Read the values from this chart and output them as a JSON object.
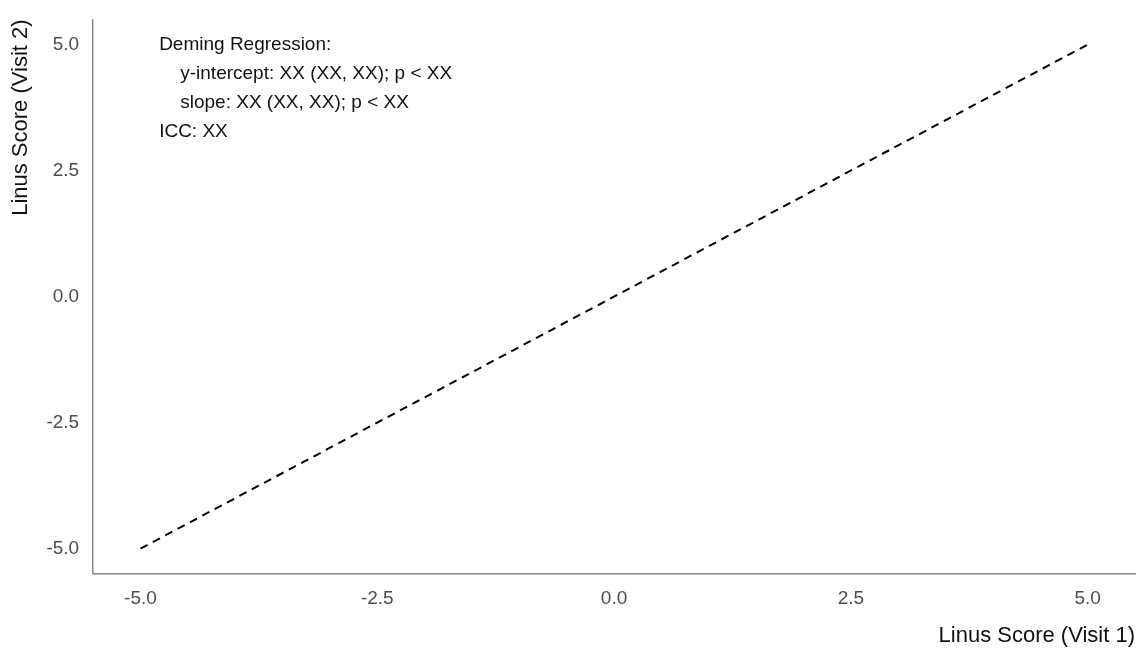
{
  "chart_data": {
    "type": "line",
    "xlabel": "Linus Score (Visit 1)",
    "ylabel": "Linus Score (Visit 2)",
    "annotations": [
      "Deming Regression:",
      "    y-intercept: XX (XX, XX); p < XX",
      "    slope: XX (XX, XX); p < XX",
      "ICC: XX"
    ],
    "series": [
      {
        "x": [
          -5,
          5
        ],
        "values": [
          -5,
          5
        ],
        "color": "#000000",
        "line_style": "dashed",
        "marker": "none"
      }
    ],
    "xlim": [
      -5.5,
      5.5
    ],
    "xticks": [
      {
        "value": -5,
        "label": "-5.0"
      },
      {
        "value": -2.5,
        "label": "-2.5"
      },
      {
        "value": 0,
        "label": "0.0"
      },
      {
        "value": 2.5,
        "label": "2.5"
      },
      {
        "value": 5,
        "label": "5.0"
      }
    ],
    "ylim": [
      -5.5,
      5.5
    ],
    "yticks": [
      {
        "value": -5,
        "label": "-5.0"
      },
      {
        "value": -2.5,
        "label": "-2.5"
      },
      {
        "value": 0,
        "label": "0.0"
      },
      {
        "value": 2.5,
        "label": "2.5"
      },
      {
        "value": 5,
        "label": "5.0"
      }
    ],
    "grid": false,
    "legend": false
  }
}
